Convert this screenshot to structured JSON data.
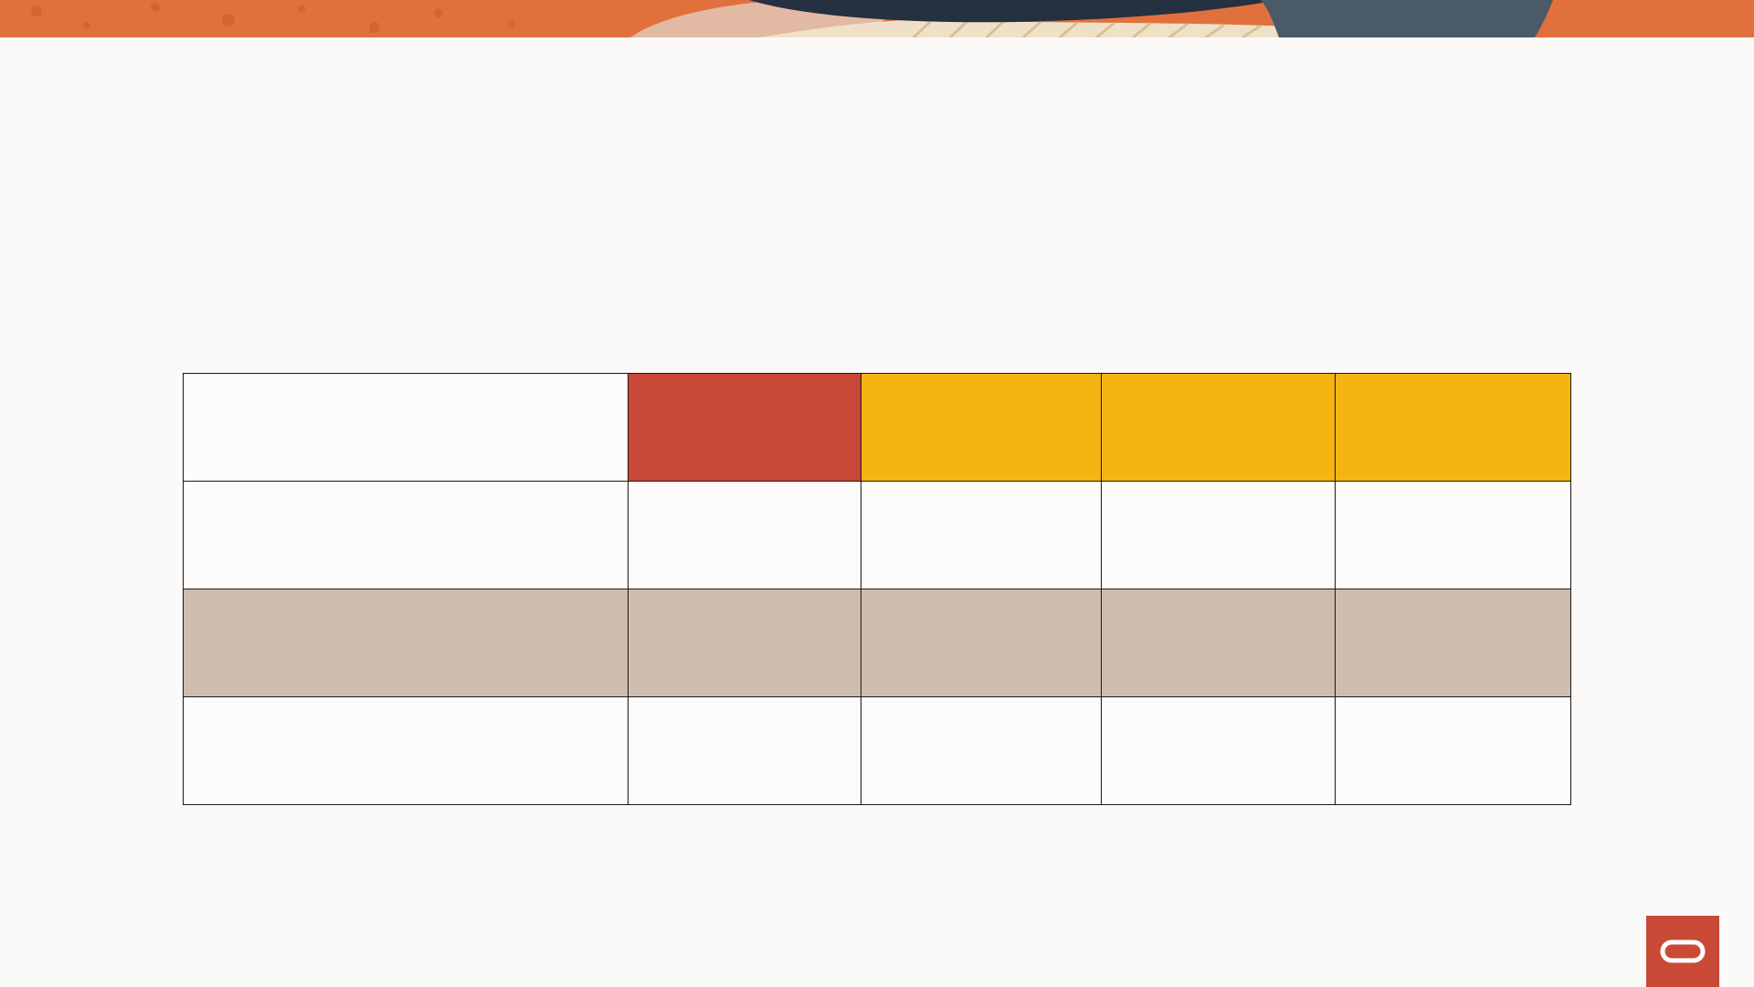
{
  "slide": {
    "background_color": "#fbfaf8"
  },
  "top_band": {
    "description_colors": {
      "orange": "#e0713d",
      "peach": "#e2b9a3",
      "dark_navy": "#253040",
      "cream": "#efe1c8",
      "slate_blue": "#4a5a68"
    }
  },
  "table": {
    "rows": [
      {
        "style": "header",
        "cells": [
          "",
          "",
          "",
          "",
          ""
        ]
      },
      {
        "style": "plain",
        "cells": [
          "",
          "",
          "",
          "",
          ""
        ]
      },
      {
        "style": "shaded",
        "cells": [
          "",
          "",
          "",
          "",
          ""
        ]
      },
      {
        "style": "plain",
        "cells": [
          "",
          "",
          "",
          "",
          ""
        ]
      }
    ],
    "colors": {
      "header_red": "#c84736",
      "header_yellow": "#f6b412",
      "shaded_row": "#cebdae",
      "plain_cell": "#fdfcfa",
      "border": "#1a1a1a"
    }
  },
  "logo": {
    "icon": "oracle-logo-icon",
    "color": "#c94a37"
  }
}
